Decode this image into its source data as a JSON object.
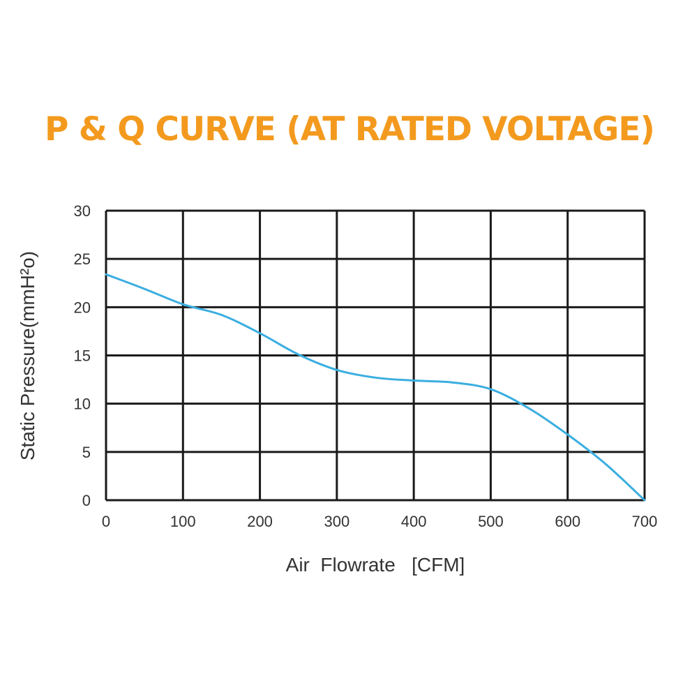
{
  "chart_data": {
    "type": "line",
    "title": "P & Q CURVE (AT RATED VOLTAGE)",
    "xlabel": "Air  Flowrate   [CFM]",
    "ylabel": "Static Pressure(mmH²o)",
    "xlim": [
      0,
      700
    ],
    "ylim": [
      0,
      30
    ],
    "x_ticks": [
      "0",
      "100",
      "200",
      "300",
      "400",
      "500",
      "600",
      "700"
    ],
    "y_ticks": [
      "0",
      "5",
      "10",
      "15",
      "20",
      "25",
      "30"
    ],
    "grid": true,
    "series": [
      {
        "x": [
          0,
          50,
          100,
          150,
          200,
          250,
          300,
          350,
          400,
          450,
          500,
          550,
          600,
          650,
          700
        ],
        "values": [
          23.4,
          21.9,
          20.3,
          19.2,
          17.3,
          15.1,
          13.5,
          12.7,
          12.4,
          12.2,
          11.5,
          9.5,
          6.8,
          3.7,
          0
        ],
        "color": "#3aaee0"
      }
    ],
    "colors": {
      "title": "#f39a1e",
      "grid": "#1a1a1a",
      "text": "#333333",
      "line": "#3aaee0"
    }
  }
}
